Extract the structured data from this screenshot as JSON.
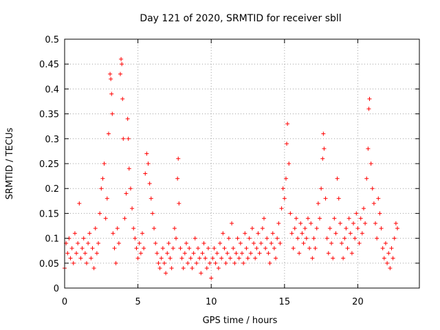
{
  "chart_data": {
    "type": "scatter",
    "title": "Day 121 of 2020, SRMTID for receiver sbll",
    "xlabel": "GPS time / hours",
    "ylabel": "SRMTID / TECUs",
    "xlim": [
      0,
      24.2
    ],
    "ylim": [
      0,
      0.5
    ],
    "x_ticks": [
      0,
      5,
      10,
      15,
      20
    ],
    "y_ticks": [
      0,
      0.05,
      0.1,
      0.15,
      0.2,
      0.25,
      0.3,
      0.35,
      0.4,
      0.45,
      0.5
    ],
    "x_tick_labels": [
      "0",
      "5",
      "10",
      "15",
      "20"
    ],
    "y_tick_labels": [
      "0",
      "0.05",
      "0.1",
      "0.15",
      "0.2",
      "0.25",
      "0.3",
      "0.35",
      "0.4",
      "0.45",
      "0.5"
    ],
    "grid": true,
    "marker": "+",
    "marker_color": "#ff0000",
    "series": [
      {
        "name": "SRMTID",
        "points": [
          [
            0.0,
            0.04
          ],
          [
            0.1,
            0.09
          ],
          [
            0.2,
            0.07
          ],
          [
            0.3,
            0.1
          ],
          [
            0.4,
            0.06
          ],
          [
            0.5,
            0.08
          ],
          [
            0.6,
            0.05
          ],
          [
            0.7,
            0.11
          ],
          [
            0.8,
            0.07
          ],
          [
            0.9,
            0.09
          ],
          [
            1.0,
            0.17
          ],
          [
            1.1,
            0.06
          ],
          [
            1.2,
            0.08
          ],
          [
            1.3,
            0.1
          ],
          [
            1.4,
            0.07
          ],
          [
            1.5,
            0.05
          ],
          [
            1.6,
            0.09
          ],
          [
            1.7,
            0.11
          ],
          [
            1.8,
            0.06
          ],
          [
            1.9,
            0.08
          ],
          [
            2.0,
            0.04
          ],
          [
            2.1,
            0.12
          ],
          [
            2.2,
            0.07
          ],
          [
            2.3,
            0.09
          ],
          [
            2.4,
            0.15
          ],
          [
            2.5,
            0.2
          ],
          [
            2.6,
            0.22
          ],
          [
            2.7,
            0.25
          ],
          [
            2.8,
            0.14
          ],
          [
            2.9,
            0.18
          ],
          [
            3.0,
            0.31
          ],
          [
            3.1,
            0.43
          ],
          [
            3.15,
            0.42
          ],
          [
            3.2,
            0.39
          ],
          [
            3.25,
            0.35
          ],
          [
            3.3,
            0.11
          ],
          [
            3.4,
            0.08
          ],
          [
            3.5,
            0.05
          ],
          [
            3.6,
            0.12
          ],
          [
            3.7,
            0.09
          ],
          [
            3.8,
            0.43
          ],
          [
            3.85,
            0.46
          ],
          [
            3.9,
            0.45
          ],
          [
            3.95,
            0.38
          ],
          [
            4.0,
            0.3
          ],
          [
            4.1,
            0.14
          ],
          [
            4.2,
            0.19
          ],
          [
            4.3,
            0.34
          ],
          [
            4.35,
            0.3
          ],
          [
            4.4,
            0.24
          ],
          [
            4.5,
            0.2
          ],
          [
            4.6,
            0.16
          ],
          [
            4.7,
            0.12
          ],
          [
            4.8,
            0.1
          ],
          [
            4.9,
            0.08
          ],
          [
            5.0,
            0.06
          ],
          [
            5.1,
            0.09
          ],
          [
            5.2,
            0.07
          ],
          [
            5.3,
            0.11
          ],
          [
            5.4,
            0.08
          ],
          [
            5.5,
            0.23
          ],
          [
            5.6,
            0.27
          ],
          [
            5.7,
            0.25
          ],
          [
            5.8,
            0.21
          ],
          [
            5.9,
            0.18
          ],
          [
            6.0,
            0.15
          ],
          [
            6.1,
            0.12
          ],
          [
            6.2,
            0.09
          ],
          [
            6.3,
            0.07
          ],
          [
            6.4,
            0.05
          ],
          [
            6.5,
            0.04
          ],
          [
            6.6,
            0.06
          ],
          [
            6.7,
            0.08
          ],
          [
            6.8,
            0.05
          ],
          [
            6.9,
            0.03
          ],
          [
            7.0,
            0.07
          ],
          [
            7.1,
            0.09
          ],
          [
            7.2,
            0.06
          ],
          [
            7.3,
            0.04
          ],
          [
            7.4,
            0.08
          ],
          [
            7.5,
            0.12
          ],
          [
            7.6,
            0.1
          ],
          [
            7.7,
            0.22
          ],
          [
            7.75,
            0.26
          ],
          [
            7.8,
            0.17
          ],
          [
            7.9,
            0.08
          ],
          [
            8.0,
            0.06
          ],
          [
            8.1,
            0.04
          ],
          [
            8.2,
            0.07
          ],
          [
            8.3,
            0.09
          ],
          [
            8.4,
            0.05
          ],
          [
            8.5,
            0.08
          ],
          [
            8.6,
            0.06
          ],
          [
            8.7,
            0.04
          ],
          [
            8.8,
            0.07
          ],
          [
            8.9,
            0.1
          ],
          [
            9.0,
            0.05
          ],
          [
            9.1,
            0.08
          ],
          [
            9.2,
            0.06
          ],
          [
            9.3,
            0.03
          ],
          [
            9.4,
            0.07
          ],
          [
            9.5,
            0.09
          ],
          [
            9.6,
            0.06
          ],
          [
            9.7,
            0.04
          ],
          [
            9.8,
            0.08
          ],
          [
            9.9,
            0.05
          ],
          [
            10.0,
            0.02
          ],
          [
            10.1,
            0.06
          ],
          [
            10.2,
            0.08
          ],
          [
            10.3,
            0.05
          ],
          [
            10.4,
            0.07
          ],
          [
            10.5,
            0.04
          ],
          [
            10.6,
            0.09
          ],
          [
            10.7,
            0.06
          ],
          [
            10.8,
            0.11
          ],
          [
            10.9,
            0.08
          ],
          [
            11.0,
            0.05
          ],
          [
            11.1,
            0.07
          ],
          [
            11.2,
            0.1
          ],
          [
            11.3,
            0.06
          ],
          [
            11.4,
            0.13
          ],
          [
            11.5,
            0.08
          ],
          [
            11.6,
            0.05
          ],
          [
            11.7,
            0.07
          ],
          [
            11.8,
            0.1
          ],
          [
            11.9,
            0.06
          ],
          [
            12.0,
            0.09
          ],
          [
            12.1,
            0.07
          ],
          [
            12.2,
            0.05
          ],
          [
            12.3,
            0.11
          ],
          [
            12.4,
            0.08
          ],
          [
            12.5,
            0.06
          ],
          [
            12.6,
            0.1
          ],
          [
            12.7,
            0.07
          ],
          [
            12.8,
            0.12
          ],
          [
            12.9,
            0.09
          ],
          [
            13.0,
            0.06
          ],
          [
            13.1,
            0.08
          ],
          [
            13.2,
            0.11
          ],
          [
            13.3,
            0.07
          ],
          [
            13.4,
            0.09
          ],
          [
            13.5,
            0.12
          ],
          [
            13.6,
            0.14
          ],
          [
            13.7,
            0.08
          ],
          [
            13.8,
            0.1
          ],
          [
            13.9,
            0.07
          ],
          [
            14.0,
            0.05
          ],
          [
            14.1,
            0.09
          ],
          [
            14.2,
            0.11
          ],
          [
            14.3,
            0.08
          ],
          [
            14.4,
            0.06
          ],
          [
            14.5,
            0.1
          ],
          [
            14.6,
            0.13
          ],
          [
            14.7,
            0.09
          ],
          [
            14.8,
            0.16
          ],
          [
            14.9,
            0.2
          ],
          [
            15.0,
            0.18
          ],
          [
            15.1,
            0.22
          ],
          [
            15.15,
            0.29
          ],
          [
            15.2,
            0.33
          ],
          [
            15.3,
            0.25
          ],
          [
            15.4,
            0.15
          ],
          [
            15.5,
            0.11
          ],
          [
            15.6,
            0.08
          ],
          [
            15.7,
            0.12
          ],
          [
            15.8,
            0.14
          ],
          [
            15.9,
            0.1
          ],
          [
            16.0,
            0.07
          ],
          [
            16.1,
            0.13
          ],
          [
            16.2,
            0.11
          ],
          [
            16.3,
            0.09
          ],
          [
            16.4,
            0.12
          ],
          [
            16.5,
            0.1
          ],
          [
            16.6,
            0.14
          ],
          [
            16.7,
            0.08
          ],
          [
            16.8,
            0.13
          ],
          [
            16.9,
            0.06
          ],
          [
            17.0,
            0.1
          ],
          [
            17.1,
            0.08
          ],
          [
            17.2,
            0.12
          ],
          [
            17.3,
            0.17
          ],
          [
            17.4,
            0.14
          ],
          [
            17.5,
            0.2
          ],
          [
            17.6,
            0.26
          ],
          [
            17.65,
            0.31
          ],
          [
            17.7,
            0.28
          ],
          [
            17.8,
            0.18
          ],
          [
            17.9,
            0.1
          ],
          [
            18.0,
            0.07
          ],
          [
            18.1,
            0.12
          ],
          [
            18.2,
            0.09
          ],
          [
            18.3,
            0.06
          ],
          [
            18.4,
            0.14
          ],
          [
            18.5,
            0.11
          ],
          [
            18.6,
            0.22
          ],
          [
            18.7,
            0.18
          ],
          [
            18.8,
            0.13
          ],
          [
            18.9,
            0.09
          ],
          [
            19.0,
            0.06
          ],
          [
            19.1,
            0.1
          ],
          [
            19.2,
            0.12
          ],
          [
            19.3,
            0.08
          ],
          [
            19.4,
            0.14
          ],
          [
            19.5,
            0.11
          ],
          [
            19.6,
            0.07
          ],
          [
            19.7,
            0.13
          ],
          [
            19.8,
            0.1
          ],
          [
            19.9,
            0.15
          ],
          [
            20.0,
            0.12
          ],
          [
            20.1,
            0.09
          ],
          [
            20.2,
            0.14
          ],
          [
            20.3,
            0.11
          ],
          [
            20.4,
            0.16
          ],
          [
            20.5,
            0.13
          ],
          [
            20.6,
            0.22
          ],
          [
            20.7,
            0.28
          ],
          [
            20.75,
            0.36
          ],
          [
            20.8,
            0.38
          ],
          [
            20.9,
            0.25
          ],
          [
            21.0,
            0.2
          ],
          [
            21.1,
            0.17
          ],
          [
            21.2,
            0.13
          ],
          [
            21.3,
            0.1
          ],
          [
            21.4,
            0.18
          ],
          [
            21.5,
            0.15
          ],
          [
            21.6,
            0.12
          ],
          [
            21.7,
            0.08
          ],
          [
            21.8,
            0.06
          ],
          [
            21.9,
            0.09
          ],
          [
            22.0,
            0.05
          ],
          [
            22.1,
            0.07
          ],
          [
            22.2,
            0.04
          ],
          [
            22.3,
            0.08
          ],
          [
            22.4,
            0.06
          ],
          [
            22.5,
            0.1
          ],
          [
            22.6,
            0.13
          ],
          [
            22.7,
            0.12
          ]
        ]
      }
    ]
  }
}
